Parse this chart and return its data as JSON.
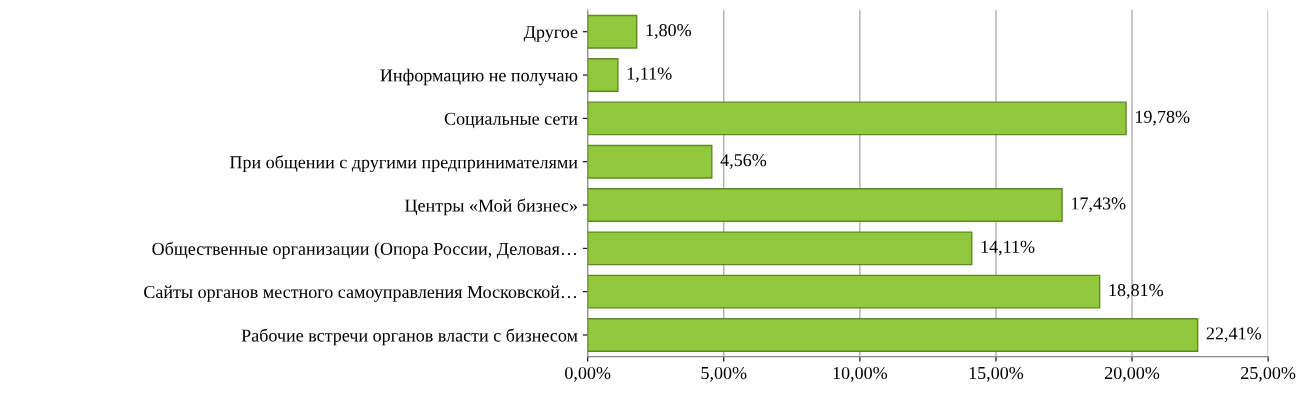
{
  "chart_data": {
    "type": "bar",
    "orientation": "horizontal",
    "categories": [
      "Другое",
      "Информацию не получаю",
      "Социальные сети",
      "При общении с другими предпринимателями",
      "Центры «Мой бизнес»",
      "Общественные организации (Опора России, Деловая…",
      "Сайты органов местного самоуправления Московской…",
      "Рабочие встречи органов власти с бизнесом"
    ],
    "values": [
      1.8,
      1.11,
      19.78,
      4.56,
      17.43,
      14.11,
      18.81,
      22.41
    ],
    "value_labels": [
      "1,80%",
      "1,11%",
      "19,78%",
      "4,56%",
      "17,43%",
      "14,11%",
      "18,81%",
      "22,41%"
    ],
    "color": "#92c83e",
    "xlim": [
      0,
      25
    ],
    "xticks": [
      {
        "value": 0,
        "label": "0,00%"
      },
      {
        "value": 5,
        "label": "5,00%"
      },
      {
        "value": 10,
        "label": "10,00%"
      },
      {
        "value": 15,
        "label": "15,00%"
      },
      {
        "value": 20,
        "label": "20,00%"
      },
      {
        "value": 25,
        "label": "25,00%"
      }
    ],
    "grid": "x"
  }
}
